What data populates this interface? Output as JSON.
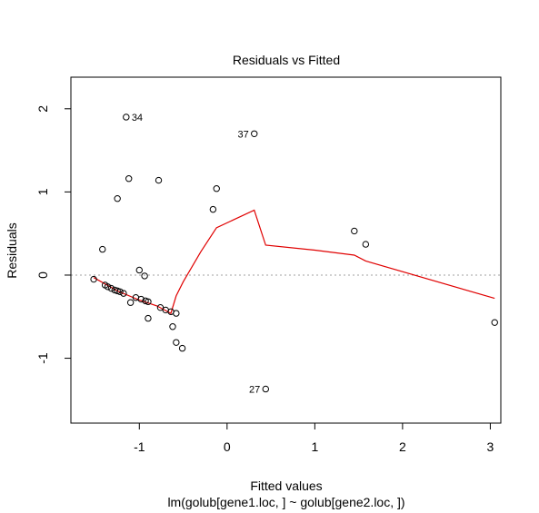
{
  "chart_data": {
    "type": "scatter",
    "title": "Residuals vs Fitted",
    "xlabel": "Fitted values",
    "subtitle": "lm(golub[gene1.loc, ] ~ golub[gene2.loc, ])",
    "ylabel": "Residuals",
    "xlim": [
      -1.78,
      3.12
    ],
    "ylim": [
      -1.78,
      2.38
    ],
    "x_ticks": [
      -1,
      0,
      1,
      2,
      3
    ],
    "x_tick_labels": [
      "-1",
      "0",
      "1",
      "2",
      "3"
    ],
    "y_ticks": [
      -1,
      0,
      1,
      2
    ],
    "y_tick_labels": [
      "-1",
      "0",
      "1",
      "2"
    ],
    "grid": false,
    "reference_line": {
      "y": 0,
      "style": "dotted",
      "color": "#a0a0a0"
    },
    "point_color": "#000000",
    "smooth_color": "#e00000",
    "points": [
      {
        "x": -1.15,
        "y": 1.9,
        "label": "34"
      },
      {
        "x": 0.31,
        "y": 1.7,
        "label": "37"
      },
      {
        "x": 0.44,
        "y": -1.37,
        "label": "27"
      },
      {
        "x": -1.12,
        "y": 1.16
      },
      {
        "x": -0.78,
        "y": 1.14
      },
      {
        "x": -1.25,
        "y": 0.92
      },
      {
        "x": -0.12,
        "y": 1.04
      },
      {
        "x": -0.16,
        "y": 0.79
      },
      {
        "x": 1.45,
        "y": 0.53
      },
      {
        "x": 1.58,
        "y": 0.37
      },
      {
        "x": -1.42,
        "y": 0.31
      },
      {
        "x": -1.0,
        "y": 0.06
      },
      {
        "x": -0.94,
        "y": -0.01
      },
      {
        "x": -1.52,
        "y": -0.05
      },
      {
        "x": -1.39,
        "y": -0.12
      },
      {
        "x": -1.36,
        "y": -0.14
      },
      {
        "x": -1.32,
        "y": -0.16
      },
      {
        "x": -1.28,
        "y": -0.18
      },
      {
        "x": -1.25,
        "y": -0.19
      },
      {
        "x": -1.22,
        "y": -0.2
      },
      {
        "x": -1.18,
        "y": -0.22
      },
      {
        "x": -1.04,
        "y": -0.27
      },
      {
        "x": -0.98,
        "y": -0.29
      },
      {
        "x": -0.93,
        "y": -0.31
      },
      {
        "x": -0.9,
        "y": -0.32
      },
      {
        "x": -1.1,
        "y": -0.33
      },
      {
        "x": -0.76,
        "y": -0.39
      },
      {
        "x": -0.7,
        "y": -0.42
      },
      {
        "x": -0.64,
        "y": -0.44
      },
      {
        "x": -0.58,
        "y": -0.46
      },
      {
        "x": -0.9,
        "y": -0.52
      },
      {
        "x": -0.62,
        "y": -0.62
      },
      {
        "x": -0.58,
        "y": -0.81
      },
      {
        "x": -0.51,
        "y": -0.88
      },
      {
        "x": 3.05,
        "y": -0.57
      }
    ],
    "smooth_line": {
      "x": [
        -1.52,
        -1.25,
        -1.0,
        -0.8,
        -0.64,
        -0.58,
        -0.5,
        -0.3,
        -0.12,
        0.31,
        0.44,
        1.0,
        1.45,
        1.58,
        3.05
      ],
      "y": [
        -0.03,
        -0.19,
        -0.3,
        -0.37,
        -0.46,
        -0.25,
        -0.08,
        0.28,
        0.57,
        0.78,
        0.36,
        0.3,
        0.24,
        0.17,
        -0.28
      ]
    }
  }
}
